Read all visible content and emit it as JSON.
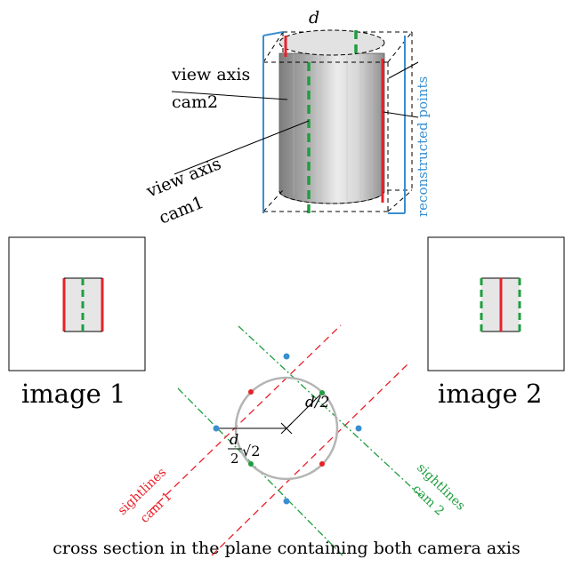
{
  "cylinder": {
    "diameter_label": "d",
    "view_axis_cam2": [
      "view axis",
      "cam2"
    ],
    "view_axis_cam1": [
      "view axis",
      "cam1"
    ],
    "reconstructed_points": "reconstructed points"
  },
  "images": {
    "image1_label": "image 1",
    "image2_label": "image 2"
  },
  "cross_section": {
    "radius_label": "d/2",
    "half_diag_label_num": "d",
    "half_diag_label_den": "2",
    "half_diag_label_root": "√2",
    "sightlines_cam1": [
      "sightlines",
      "cam 1"
    ],
    "sightlines_cam2": [
      "sightlines",
      "cam 2"
    ],
    "caption": "cross section in the plane containing both camera axis"
  },
  "colors": {
    "cam1": "#e8202a",
    "cam2": "#1e9e3e",
    "reconstructed": "#3a8fd0",
    "circle": "#b5b5b5"
  }
}
